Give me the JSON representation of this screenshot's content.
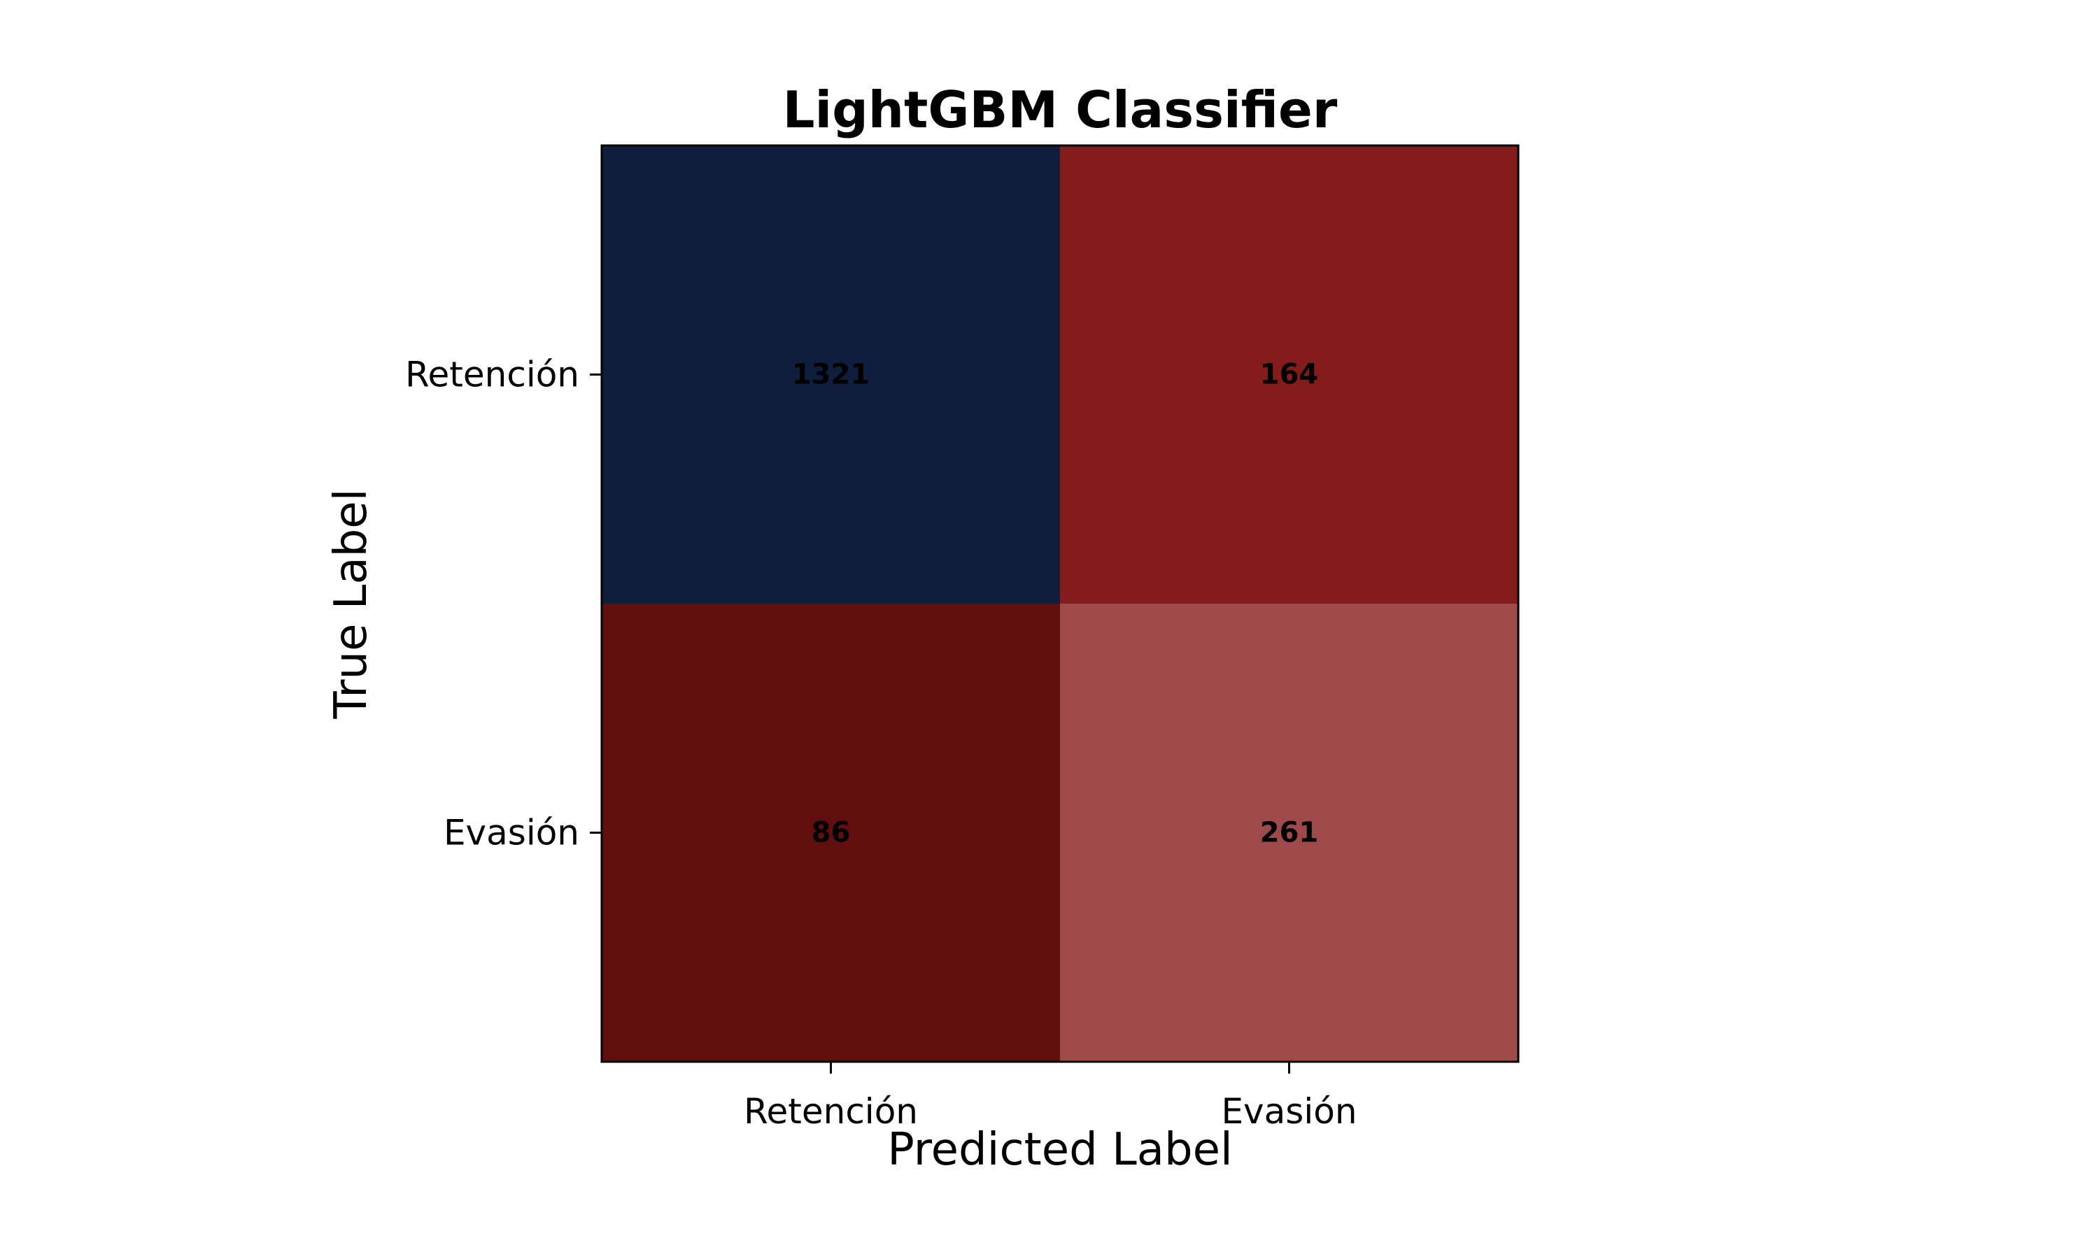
{
  "chart_data": {
    "type": "heatmap",
    "title": "LightGBM Classifier",
    "xlabel": "Predicted Label",
    "ylabel": "True Label",
    "x_categories": [
      "Retención",
      "Evasión"
    ],
    "y_categories": [
      "Retención",
      "Evasión"
    ],
    "values": [
      [
        1321,
        164
      ],
      [
        86,
        261
      ]
    ],
    "cell_colors": [
      [
        "#0f1e3c",
        "#851c1c"
      ],
      [
        "#600e0e",
        "#9e4a4a"
      ]
    ],
    "grid": false,
    "legend": "none"
  }
}
